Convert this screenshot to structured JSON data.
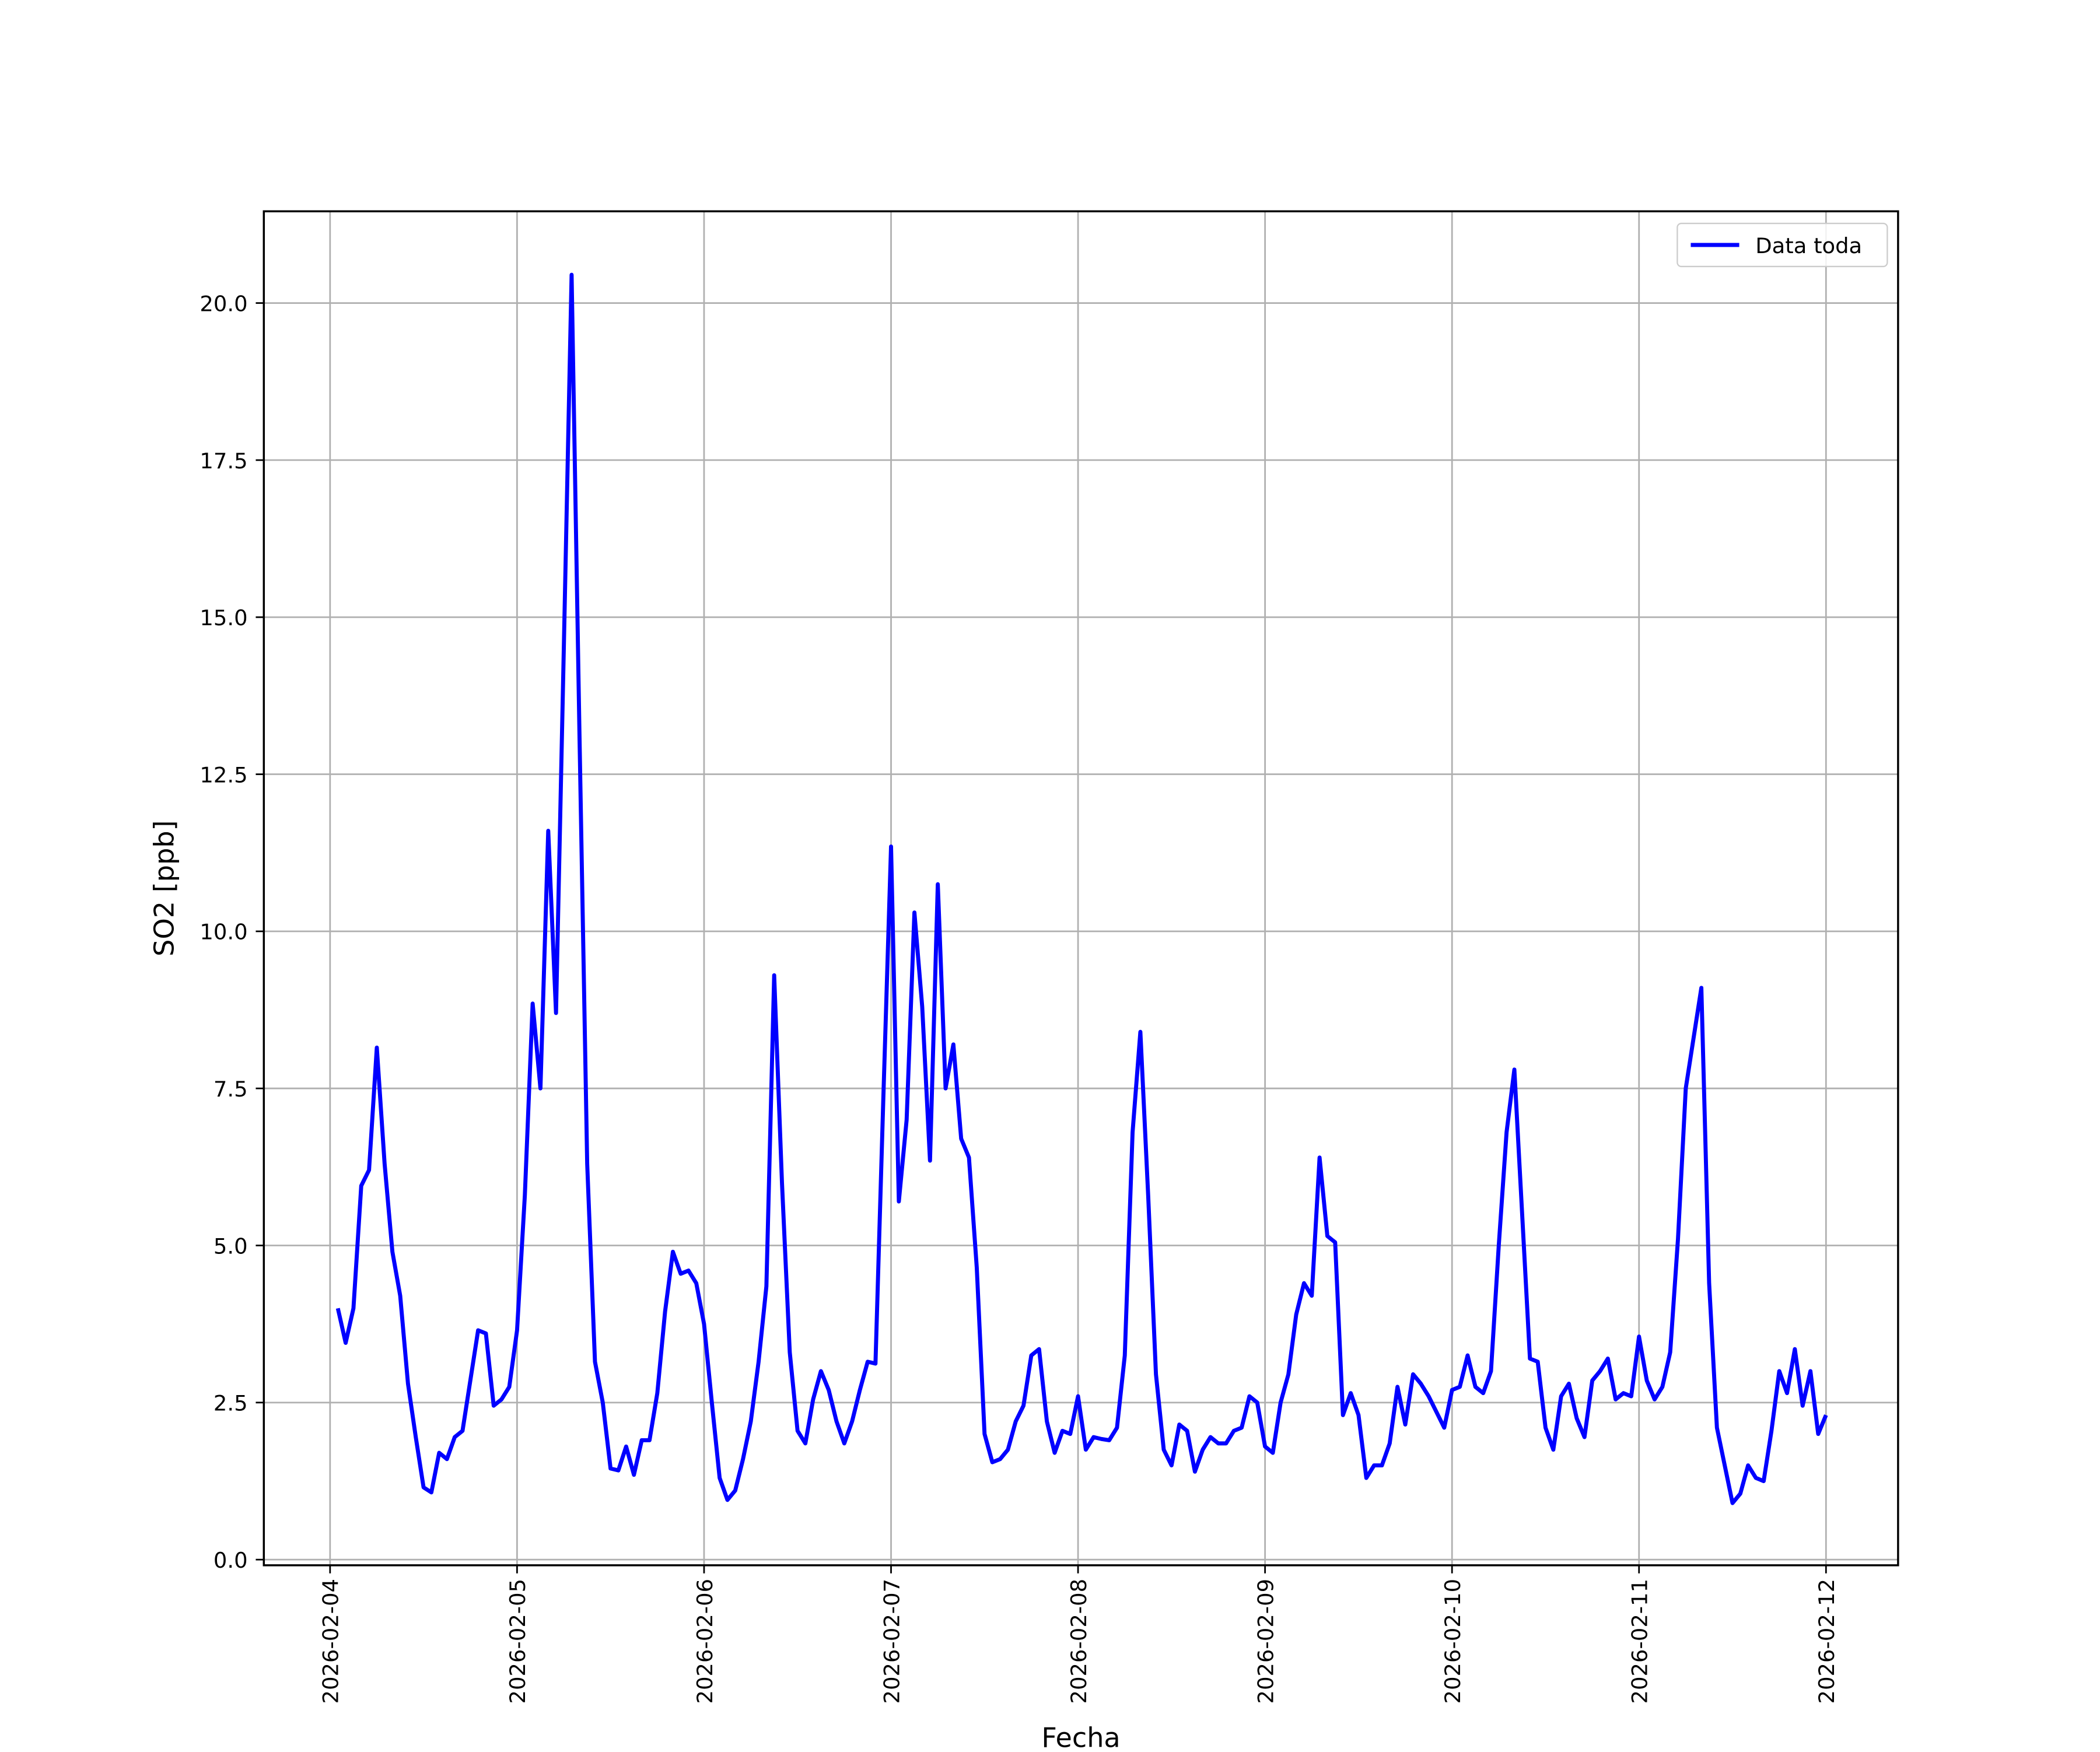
{
  "chart_data": {
    "type": "line",
    "ylabel": "SO2 [ppb]",
    "xlabel": "Fecha",
    "x": [
      "2026-02-04 01:00",
      "2026-02-04 02:00",
      "2026-02-04 03:00",
      "2026-02-04 04:00",
      "2026-02-04 05:00",
      "2026-02-04 06:00",
      "2026-02-04 07:00",
      "2026-02-04 08:00",
      "2026-02-04 09:00",
      "2026-02-04 10:00",
      "2026-02-04 11:00",
      "2026-02-04 12:00",
      "2026-02-04 13:00",
      "2026-02-04 14:00",
      "2026-02-04 15:00",
      "2026-02-04 16:00",
      "2026-02-04 17:00",
      "2026-02-04 18:00",
      "2026-02-04 19:00",
      "2026-02-04 20:00",
      "2026-02-04 21:00",
      "2026-02-04 22:00",
      "2026-02-04 23:00",
      "2026-02-05 00:00",
      "2026-02-05 01:00",
      "2026-02-05 02:00",
      "2026-02-05 03:00",
      "2026-02-05 04:00",
      "2026-02-05 05:00",
      "2026-02-05 06:00",
      "2026-02-05 07:00",
      "2026-02-05 08:00",
      "2026-02-05 09:00",
      "2026-02-05 10:00",
      "2026-02-05 11:00",
      "2026-02-05 12:00",
      "2026-02-05 13:00",
      "2026-02-05 14:00",
      "2026-02-05 15:00",
      "2026-02-05 16:00",
      "2026-02-05 17:00",
      "2026-02-05 18:00",
      "2026-02-05 19:00",
      "2026-02-05 20:00",
      "2026-02-05 21:00",
      "2026-02-05 22:00",
      "2026-02-05 23:00",
      "2026-02-06 00:00",
      "2026-02-06 01:00",
      "2026-02-06 02:00",
      "2026-02-06 03:00",
      "2026-02-06 04:00",
      "2026-02-06 05:00",
      "2026-02-06 06:00",
      "2026-02-06 07:00",
      "2026-02-06 08:00",
      "2026-02-06 09:00",
      "2026-02-06 10:00",
      "2026-02-06 11:00",
      "2026-02-06 12:00",
      "2026-02-06 13:00",
      "2026-02-06 14:00",
      "2026-02-06 15:00",
      "2026-02-06 16:00",
      "2026-02-06 17:00",
      "2026-02-06 18:00",
      "2026-02-06 19:00",
      "2026-02-06 20:00",
      "2026-02-06 21:00",
      "2026-02-06 22:00",
      "2026-02-06 23:00",
      "2026-02-07 00:00",
      "2026-02-07 01:00",
      "2026-02-07 02:00",
      "2026-02-07 03:00",
      "2026-02-07 04:00",
      "2026-02-07 05:00",
      "2026-02-07 06:00",
      "2026-02-07 07:00",
      "2026-02-07 08:00",
      "2026-02-07 09:00",
      "2026-02-07 10:00",
      "2026-02-07 11:00",
      "2026-02-07 12:00",
      "2026-02-07 13:00",
      "2026-02-07 14:00",
      "2026-02-07 15:00",
      "2026-02-07 16:00",
      "2026-02-07 17:00",
      "2026-02-07 18:00",
      "2026-02-07 19:00",
      "2026-02-07 20:00",
      "2026-02-07 21:00",
      "2026-02-07 22:00",
      "2026-02-07 23:00",
      "2026-02-08 00:00",
      "2026-02-08 01:00",
      "2026-02-08 02:00",
      "2026-02-08 03:00",
      "2026-02-08 04:00",
      "2026-02-08 05:00",
      "2026-02-08 06:00",
      "2026-02-08 07:00",
      "2026-02-08 08:00",
      "2026-02-08 09:00",
      "2026-02-08 10:00",
      "2026-02-08 11:00",
      "2026-02-08 12:00",
      "2026-02-08 13:00",
      "2026-02-08 14:00",
      "2026-02-08 15:00",
      "2026-02-08 16:00",
      "2026-02-08 17:00",
      "2026-02-08 18:00",
      "2026-02-08 19:00",
      "2026-02-08 20:00",
      "2026-02-08 21:00",
      "2026-02-08 22:00",
      "2026-02-08 23:00",
      "2026-02-09 00:00",
      "2026-02-09 01:00",
      "2026-02-09 02:00",
      "2026-02-09 03:00",
      "2026-02-09 04:00",
      "2026-02-09 05:00",
      "2026-02-09 06:00",
      "2026-02-09 07:00",
      "2026-02-09 08:00",
      "2026-02-09 09:00",
      "2026-02-09 10:00",
      "2026-02-09 11:00",
      "2026-02-09 12:00",
      "2026-02-09 13:00",
      "2026-02-09 14:00",
      "2026-02-09 15:00",
      "2026-02-09 16:00",
      "2026-02-09 17:00",
      "2026-02-09 18:00",
      "2026-02-09 19:00",
      "2026-02-09 20:00",
      "2026-02-09 21:00",
      "2026-02-09 22:00",
      "2026-02-09 23:00",
      "2026-02-10 00:00",
      "2026-02-10 01:00",
      "2026-02-10 02:00",
      "2026-02-10 03:00",
      "2026-02-10 04:00",
      "2026-02-10 05:00",
      "2026-02-10 06:00",
      "2026-02-10 07:00",
      "2026-02-10 08:00",
      "2026-02-10 09:00",
      "2026-02-10 10:00",
      "2026-02-10 11:00",
      "2026-02-10 12:00",
      "2026-02-10 13:00",
      "2026-02-10 14:00",
      "2026-02-10 15:00",
      "2026-02-10 16:00",
      "2026-02-10 17:00",
      "2026-02-10 18:00",
      "2026-02-10 19:00",
      "2026-02-10 20:00",
      "2026-02-10 21:00",
      "2026-02-10 22:00",
      "2026-02-10 23:00",
      "2026-02-11 00:00",
      "2026-02-11 01:00",
      "2026-02-11 02:00",
      "2026-02-11 03:00",
      "2026-02-11 04:00",
      "2026-02-11 05:00",
      "2026-02-11 06:00",
      "2026-02-11 07:00",
      "2026-02-11 08:00",
      "2026-02-11 09:00",
      "2026-02-11 10:00",
      "2026-02-11 11:00",
      "2026-02-11 12:00",
      "2026-02-11 13:00",
      "2026-02-11 14:00",
      "2026-02-11 15:00",
      "2026-02-11 16:00",
      "2026-02-11 17:00",
      "2026-02-11 18:00",
      "2026-02-11 19:00",
      "2026-02-11 20:00",
      "2026-02-11 21:00",
      "2026-02-11 22:00",
      "2026-02-11 23:00",
      "2026-02-12 00:00"
    ],
    "series": [
      {
        "name": "Data toda",
        "color": "#0000ff",
        "values": [
          4.0,
          3.45,
          4.0,
          5.95,
          6.2,
          8.15,
          6.3,
          4.9,
          4.2,
          2.8,
          1.95,
          1.15,
          1.07,
          1.7,
          1.6,
          1.95,
          2.05,
          2.85,
          3.65,
          3.6,
          2.45,
          2.55,
          2.75,
          3.65,
          5.8,
          8.85,
          7.5,
          11.6,
          8.7,
          14.5,
          20.45,
          13.2,
          6.3,
          3.15,
          2.5,
          1.45,
          1.42,
          1.8,
          1.35,
          1.9,
          1.9,
          2.65,
          3.95,
          4.9,
          4.55,
          4.6,
          4.4,
          3.75,
          2.5,
          1.3,
          0.95,
          1.1,
          1.6,
          2.2,
          3.15,
          4.35,
          9.3,
          6.0,
          3.3,
          2.05,
          1.85,
          2.55,
          3.0,
          2.7,
          2.2,
          1.85,
          2.2,
          2.7,
          3.15,
          3.12,
          7.3,
          11.35,
          5.7,
          7.0,
          10.3,
          8.8,
          6.35,
          10.75,
          7.5,
          8.2,
          6.7,
          6.4,
          4.65,
          2.0,
          1.55,
          1.6,
          1.75,
          2.2,
          2.45,
          3.25,
          3.35,
          2.2,
          1.7,
          2.05,
          2.0,
          2.6,
          1.75,
          1.95,
          1.92,
          1.9,
          2.1,
          3.25,
          6.8,
          8.4,
          5.8,
          2.95,
          1.75,
          1.5,
          2.15,
          2.05,
          1.4,
          1.75,
          1.95,
          1.85,
          1.85,
          2.05,
          2.1,
          2.6,
          2.5,
          1.8,
          1.7,
          2.5,
          2.95,
          3.9,
          4.4,
          4.2,
          6.4,
          5.15,
          5.05,
          2.3,
          2.65,
          2.3,
          1.3,
          1.5,
          1.5,
          1.85,
          2.75,
          2.15,
          2.95,
          2.8,
          2.6,
          2.35,
          2.1,
          2.7,
          2.75,
          3.25,
          2.75,
          2.65,
          3.0,
          5.0,
          6.8,
          7.8,
          5.5,
          3.2,
          3.15,
          2.1,
          1.75,
          2.6,
          2.8,
          2.25,
          1.95,
          2.85,
          3.0,
          3.2,
          2.55,
          2.65,
          2.6,
          3.55,
          2.85,
          2.55,
          2.75,
          3.3,
          5.1,
          7.5,
          8.3,
          9.1,
          4.4,
          2.1,
          1.5,
          0.9,
          1.05,
          1.5,
          1.3,
          1.25,
          2.05,
          3.0,
          2.65,
          3.35,
          2.45,
          3.0,
          2.0,
          2.3
        ]
      }
    ],
    "xlim": [
      "2026-02-03 15:30",
      "2026-02-12 09:15"
    ],
    "xticks": [
      "2026-02-04",
      "2026-02-05",
      "2026-02-06",
      "2026-02-07",
      "2026-02-08",
      "2026-02-09",
      "2026-02-10",
      "2026-02-11",
      "2026-02-12"
    ],
    "ylim": [
      -0.09,
      21.46
    ],
    "yticks": [
      {
        "value": 0,
        "label": "0.0"
      },
      2.5,
      {
        "value": 5,
        "label": "5.0"
      },
      7.5,
      {
        "value": 10,
        "label": "10.0"
      },
      12.5,
      {
        "value": 15,
        "label": "15.0"
      },
      17.5,
      {
        "value": 20,
        "label": "20.0"
      }
    ],
    "grid": true,
    "legend": "upper right"
  }
}
